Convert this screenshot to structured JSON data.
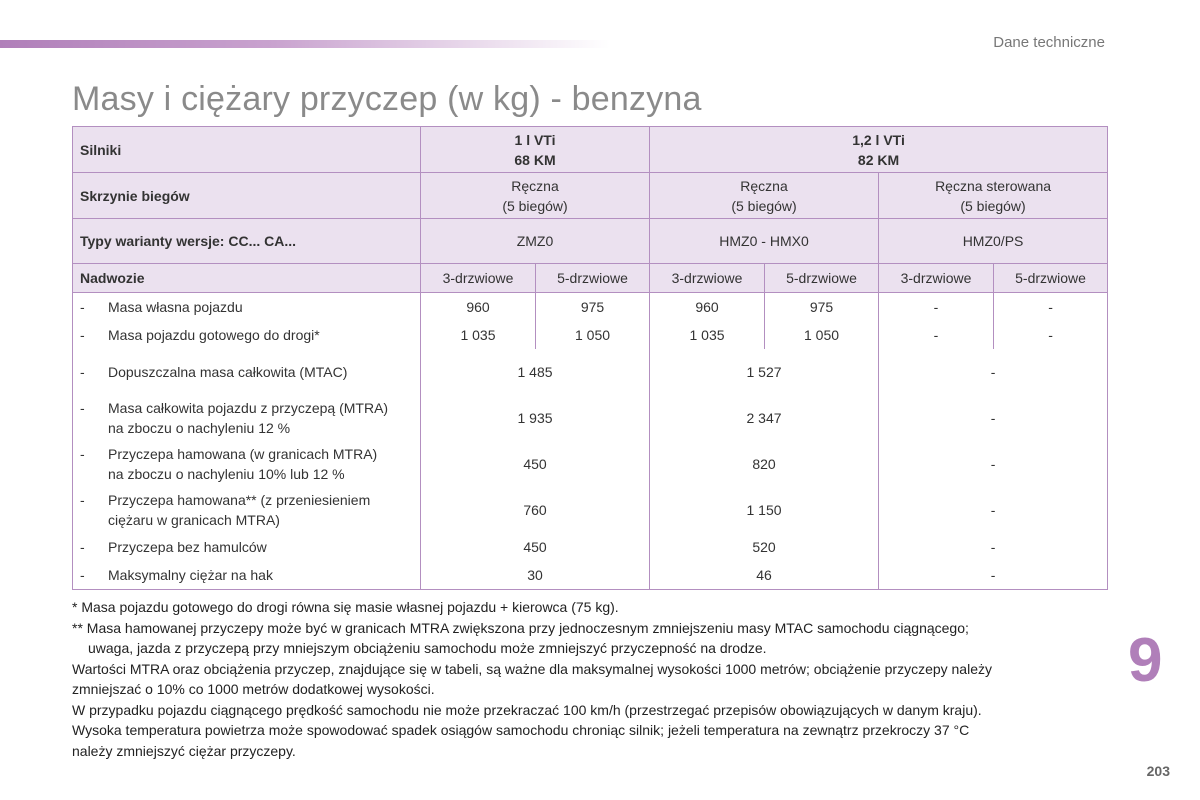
{
  "header": {
    "section_label": "Dane techniczne",
    "title": "Masy i ciężary przyczep (w kg) - benzyna"
  },
  "table": {
    "engines": {
      "label": "Silniki",
      "e1_line1": "1 l VTi",
      "e1_line2": "68 KM",
      "e2_line1": "1,2 l VTi",
      "e2_line2": "82 KM"
    },
    "gearboxes": {
      "label": "Skrzynie biegów",
      "g1_line1": "Ręczna",
      "g1_line2": "(5 biegów)",
      "g2_line1": "Ręczna",
      "g2_line2": "(5 biegów)",
      "g3_line1": "Ręczna sterowana",
      "g3_line2": "(5 biegów)"
    },
    "variants": {
      "label": "Typy warianty wersje: CC... CA...",
      "v1": "ZMZ0",
      "v2": "HMZ0 - HMX0",
      "v3": "HMZ0/PS"
    },
    "body": {
      "label": "Nadwozie",
      "cols": [
        "3-drzwiowe",
        "5-drzwiowe",
        "3-drzwiowe",
        "5-drzwiowe",
        "3-drzwiowe",
        "5-drzwiowe"
      ]
    },
    "dash": "-",
    "rows": [
      {
        "line1": "Masa własna pojazdu",
        "values": [
          "960",
          "975",
          "960",
          "975",
          "-",
          "-"
        ]
      },
      {
        "line1": "Masa pojazdu gotowego do drogi*",
        "values": [
          "1 035",
          "1 050",
          "1 035",
          "1 050",
          "-",
          "-"
        ]
      },
      {
        "line1": "Dopuszczalna masa całkowita (MTAC)",
        "values": [
          "1 485",
          "1 527",
          "-"
        ]
      },
      {
        "line1": "Masa całkowita pojazdu z przyczepą (MTRA)",
        "line2": "na zboczu o nachyleniu 12 %",
        "values": [
          "1 935",
          "2 347",
          "-"
        ]
      },
      {
        "line1": "Przyczepa hamowana (w granicach MTRA)",
        "line2": "na zboczu o nachyleniu 10% lub 12 %",
        "values": [
          "450",
          "820",
          "-"
        ]
      },
      {
        "line1": "Przyczepa hamowana** (z przeniesieniem",
        "line2": "ciężaru w granicach MTRA)",
        "values": [
          "760",
          "1 150",
          "-"
        ]
      },
      {
        "line1": "Przyczepa bez hamulców",
        "values": [
          "450",
          "520",
          "-"
        ]
      },
      {
        "line1": "Maksymalny ciężar na hak",
        "values": [
          "30",
          "46",
          "-"
        ]
      }
    ]
  },
  "notes": {
    "n1": "* Masa pojazdu gotowego do drogi równa się masie własnej pojazdu + kierowca (75 kg).",
    "n2a": "** Masa hamowanej przyczepy może być w granicach MTRA zwiększona przy jednoczesnym zmniejszeniu masy MTAC samochodu ciągnącego;",
    "n2b": "uwaga, jazda z przyczepą przy mniejszym obciążeniu samochodu może zmniejszyć przyczepność na drodze.",
    "n3a": "Wartości MTRA oraz obciążenia przyczep, znajdujące się w tabeli, są ważne dla maksymalnej wysokości 1000 metrów; obciążenie przyczepy należy",
    "n3b": "zmniejszać o 10% co 1000 metrów dodatkowej wysokości.",
    "n4": "W przypadku pojazdu ciągnącego prędkość samochodu nie może przekraczać 100 km/h (przestrzegać przepisów obowiązujących w danym kraju).",
    "n5a": "Wysoka temperatura powietrza może spowodować spadek osiągów samochodu chroniąc silnik; jeżeli temperatura na zewnątrz przekroczy 37 °C",
    "n5b": "należy zmniejszyć ciężar przyczepy."
  },
  "chapter_number": "9",
  "page_number": "203",
  "colors": {
    "accent": "#b07fb9",
    "header_bg": "#ebe1ef",
    "border": "#b38fc0",
    "title": "#8a8a8a"
  }
}
